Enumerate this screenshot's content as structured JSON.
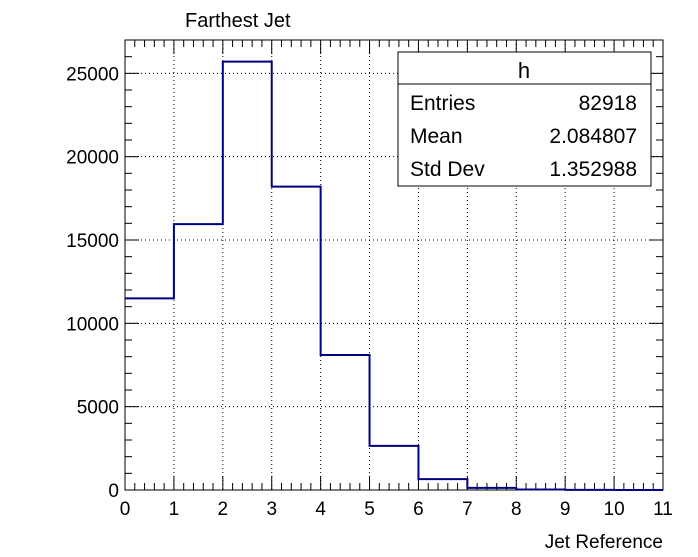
{
  "chart_data": {
    "type": "bar",
    "style": "step-histogram",
    "title": "Farthest Jet",
    "xlabel": "Jet Reference",
    "ylabel": "",
    "xlim": [
      0,
      11
    ],
    "ylim": [
      0,
      27000
    ],
    "grid": true,
    "bin_edges": [
      0,
      1,
      2,
      3,
      4,
      5,
      6,
      7,
      8,
      9,
      10,
      11
    ],
    "values": [
      11500,
      15950,
      25700,
      18200,
      8100,
      2650,
      650,
      130,
      30,
      10,
      0
    ],
    "x_ticks": [
      "0",
      "1",
      "2",
      "3",
      "4",
      "5",
      "6",
      "7",
      "8",
      "9",
      "10",
      "11"
    ],
    "y_ticks": [
      "0",
      "5000",
      "10000",
      "15000",
      "20000",
      "25000"
    ],
    "line_color": "#000080",
    "stats_box": {
      "name": "h",
      "rows": [
        {
          "label": "Entries",
          "value": "82918"
        },
        {
          "label": "Mean",
          "value": "2.084807"
        },
        {
          "label": "Std Dev",
          "value": "1.352988"
        }
      ],
      "placement": "top-right"
    }
  }
}
